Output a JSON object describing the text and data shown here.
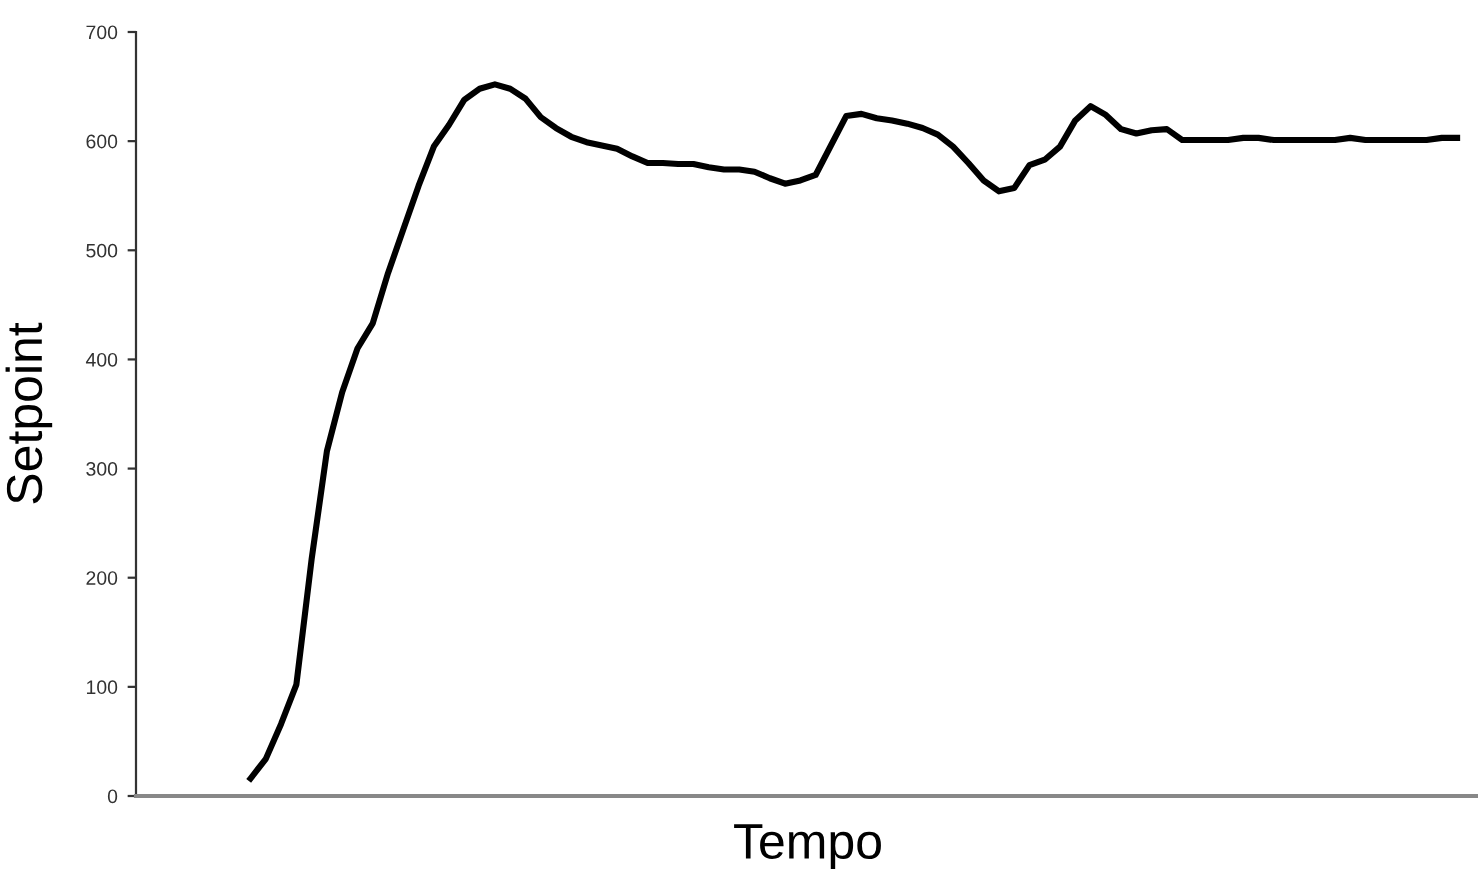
{
  "chart_data": {
    "type": "line",
    "xlabel": "Tempo",
    "ylabel": "Setpoint",
    "categories": [
      null,
      null,
      null,
      null,
      null,
      null,
      null,
      null,
      null,
      null,
      null,
      null,
      null,
      null,
      null,
      null,
      null,
      null,
      null,
      null,
      null,
      null,
      null,
      null,
      null,
      null,
      null,
      null,
      null,
      null,
      null,
      null,
      null,
      null,
      null,
      null,
      null,
      null,
      null,
      null,
      null,
      null,
      null,
      null,
      null,
      null,
      null,
      null,
      null,
      null,
      null,
      null,
      null,
      null,
      null,
      null,
      null,
      null,
      null,
      null,
      null,
      null,
      null,
      null,
      null,
      null,
      null,
      null,
      null,
      null,
      null,
      null,
      null,
      null,
      null,
      null,
      null,
      null,
      null,
      null,
      null,
      null,
      null,
      null,
      null,
      null,
      null,
      null
    ],
    "series": [
      {
        "color": "#000000",
        "values": [
          null,
          null,
          null,
          null,
          null,
          null,
          null,
          16,
          34,
          66,
          102,
          217,
          316,
          370,
          410,
          433,
          479,
          519,
          559,
          595,
          615,
          638,
          648,
          652,
          648,
          639,
          622,
          612,
          604,
          599,
          596,
          593,
          586,
          580,
          580,
          579,
          579,
          576,
          574,
          574,
          572,
          566,
          561,
          564,
          569,
          596,
          623,
          625,
          621,
          619,
          616,
          612,
          606,
          595,
          580,
          564,
          554,
          557,
          578,
          583,
          595,
          619,
          632,
          624,
          611,
          607,
          610,
          611,
          601,
          601,
          601,
          601,
          603,
          603,
          601,
          601,
          601,
          601,
          601,
          603,
          601,
          601,
          601,
          601,
          601,
          603,
          603,
          null
        ]
      }
    ],
    "ylim": [
      0,
      700
    ],
    "yticks": [
      0,
      100,
      200,
      300,
      400,
      500,
      600,
      700
    ],
    "grid": false,
    "legend": false,
    "marker": "none",
    "line_style": "solid"
  }
}
